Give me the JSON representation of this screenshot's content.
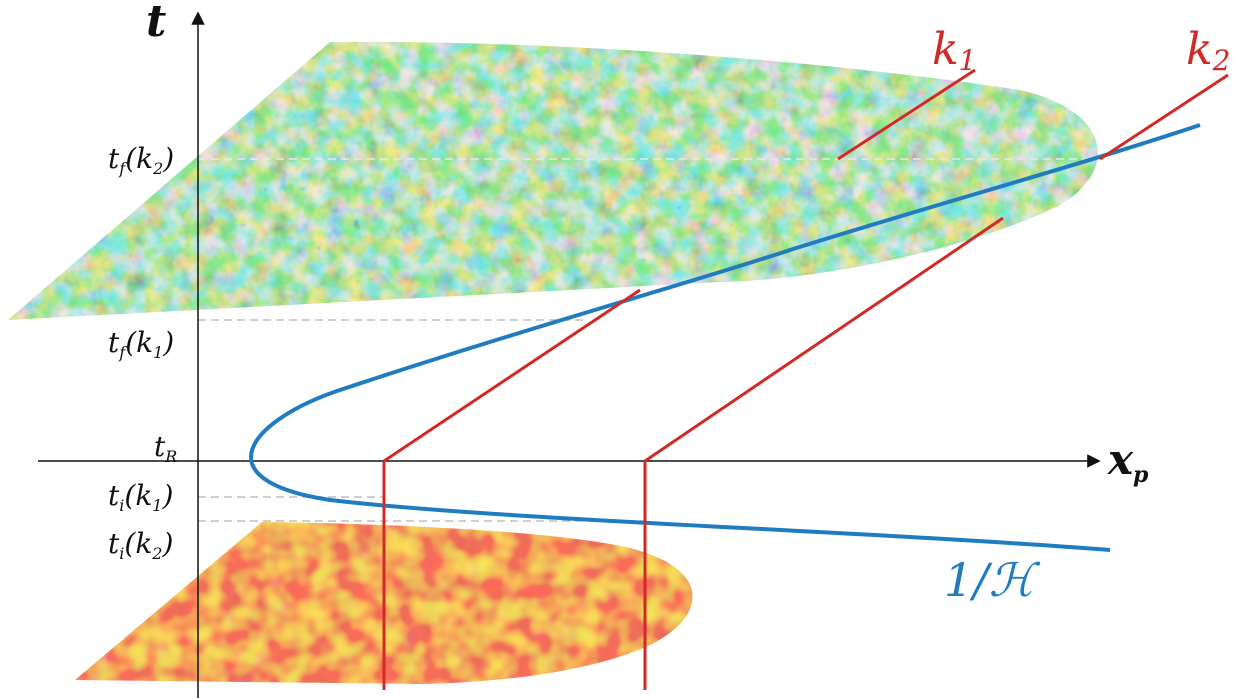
{
  "axes": {
    "t_axis_label": "t",
    "x_axis_label": "x",
    "x_axis_subscript": "p"
  },
  "time_labels": {
    "tf_k2": {
      "main": "t",
      "sub": "f",
      "arg": "(k",
      "arg_sub": "2",
      "close": ")"
    },
    "tf_k1": {
      "main": "t",
      "sub": "f",
      "arg": "(k",
      "arg_sub": "1",
      "close": ")"
    },
    "tR": {
      "main": "t",
      "sub": "R"
    },
    "ti_k1": {
      "main": "t",
      "sub": "i",
      "arg": "(k",
      "arg_sub": "1",
      "close": ")"
    },
    "ti_k2": {
      "main": "t",
      "sub": "i",
      "arg": "(k",
      "arg_sub": "2",
      "close": ")"
    }
  },
  "mode_labels": {
    "k1": {
      "main": "k",
      "sub": "1"
    },
    "k2": {
      "main": "k",
      "sub": "2"
    }
  },
  "horizon_label": "1/ℋ",
  "colors": {
    "axis": "#111111",
    "mode_lines": "#d12a26",
    "horizon_curve": "#1f7cc1",
    "dashed_guides": "#bfbfbf",
    "cmb_map": [
      "#1a3fa8",
      "#2f8fd6",
      "#4fb9a8",
      "#9ccf47",
      "#e8d23a",
      "#d6451f"
    ],
    "early_map": [
      "#d81e1e",
      "#f2a21a",
      "#ffe53b"
    ]
  }
}
